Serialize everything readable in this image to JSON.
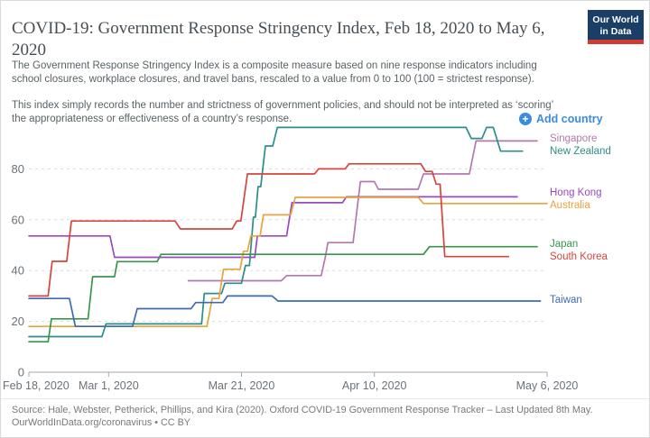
{
  "header": {
    "title": "COVID-19: Government Response Stringency Index, Feb 18, 2020 to May 6, 2020",
    "logo_line1": "Our World",
    "logo_line2": "in Data",
    "description1": "The Government Response Stringency Index is a composite measure based on nine response indicators including school closures, workplace closures, and travel bans, rescaled to a value from 0 to 100 (100 = strictest response).",
    "description2": "This index simply records the number and strictness of government policies, and should not be interpreted as ‘scoring’ the appropriateness or effectiveness of a country’s response."
  },
  "controls": {
    "add_country_label": "Add country"
  },
  "chart_data": {
    "type": "line",
    "title": "COVID-19: Government Response Stringency Index",
    "date_range": "Feb 18, 2020 to May 6, 2020",
    "xlabel": "",
    "ylabel": "",
    "ylim": [
      0,
      100
    ],
    "yticks": [
      0,
      20,
      40,
      60,
      80
    ],
    "grid": "dashed horizontal gridlines",
    "legend_position": "right of plot, colored country labels",
    "x_unit": "day offset from Feb 18, 2020",
    "xticks": [
      {
        "day": 0,
        "label": "Feb 18, 2020",
        "align": "start"
      },
      {
        "day": 12,
        "label": "Mar 1, 2020",
        "align": "middle"
      },
      {
        "day": 32,
        "label": "Mar 21, 2020",
        "align": "middle"
      },
      {
        "day": 52,
        "label": "Apr 10, 2020",
        "align": "middle"
      },
      {
        "day": 78,
        "label": "May 6, 2020",
        "align": "middle"
      }
    ],
    "series": [
      {
        "name": "Singapore",
        "color": "#b478af",
        "points": [
          [
            24,
            36
          ],
          [
            38,
            36
          ],
          [
            38.8,
            38
          ],
          [
            44,
            38
          ],
          [
            44.6,
            45
          ],
          [
            45,
            51
          ],
          [
            48.8,
            51
          ],
          [
            49.9,
            75
          ],
          [
            52,
            75
          ],
          [
            52.6,
            72
          ],
          [
            58.6,
            72
          ],
          [
            59.4,
            78
          ],
          [
            66.3,
            78
          ],
          [
            67.3,
            91
          ],
          [
            76.5,
            91
          ]
        ]
      },
      {
        "name": "New Zealand",
        "color": "#2b8e8a",
        "points": [
          [
            0,
            14
          ],
          [
            11,
            14
          ],
          [
            11.6,
            19
          ],
          [
            26,
            19
          ],
          [
            26.4,
            31
          ],
          [
            29,
            31
          ],
          [
            29.5,
            35
          ],
          [
            32,
            35
          ],
          [
            32.6,
            42
          ],
          [
            33.2,
            42
          ],
          [
            33.8,
            61
          ],
          [
            34.1,
            61
          ],
          [
            34.5,
            73
          ],
          [
            34.9,
            73
          ],
          [
            35.6,
            89
          ],
          [
            36.7,
            89
          ],
          [
            37.4,
            96.3
          ],
          [
            65.8,
            96.3
          ],
          [
            66.6,
            92
          ],
          [
            68.2,
            92
          ],
          [
            68.9,
            96.3
          ],
          [
            69.9,
            96.3
          ],
          [
            71,
            87
          ],
          [
            74.3,
            87
          ]
        ]
      },
      {
        "name": "Hong Kong",
        "color": "#9a49be",
        "points": [
          [
            0,
            53.6
          ],
          [
            12.2,
            53.6
          ],
          [
            12.9,
            45.2
          ],
          [
            34,
            45.2
          ],
          [
            34.4,
            53.6
          ],
          [
            38.8,
            53.6
          ],
          [
            39.6,
            66.7
          ],
          [
            47.2,
            66.7
          ],
          [
            47.8,
            69
          ],
          [
            73.5,
            69
          ]
        ]
      },
      {
        "name": "Australia",
        "color": "#e8a33c",
        "points": [
          [
            0,
            18
          ],
          [
            26.8,
            18
          ],
          [
            27.6,
            29
          ],
          [
            28.6,
            29
          ],
          [
            29.3,
            40.5
          ],
          [
            31.8,
            40.5
          ],
          [
            32.3,
            47.6
          ],
          [
            32.9,
            47.6
          ],
          [
            33.4,
            53.6
          ],
          [
            34.8,
            53.6
          ],
          [
            35.3,
            61.9
          ],
          [
            39.4,
            61.9
          ],
          [
            40.1,
            68.8
          ],
          [
            58.6,
            68.8
          ],
          [
            59.4,
            66.4
          ],
          [
            78,
            66.4
          ]
        ]
      },
      {
        "name": "Japan",
        "color": "#38964a",
        "points": [
          [
            0,
            12
          ],
          [
            2.9,
            12
          ],
          [
            3.4,
            21
          ],
          [
            8.9,
            21
          ],
          [
            9.6,
            37.6
          ],
          [
            12.9,
            37.6
          ],
          [
            13.3,
            43.5
          ],
          [
            19.3,
            43.5
          ],
          [
            19.9,
            46.4
          ],
          [
            59.4,
            46.4
          ],
          [
            60.3,
            49.4
          ],
          [
            76.5,
            49.4
          ]
        ]
      },
      {
        "name": "South Korea",
        "color": "#d8433d",
        "points": [
          [
            0,
            30
          ],
          [
            2.9,
            30
          ],
          [
            3.5,
            43.6
          ],
          [
            5.7,
            43.6
          ],
          [
            6.4,
            59.5
          ],
          [
            22,
            59.5
          ],
          [
            22.8,
            56.4
          ],
          [
            30.6,
            56.4
          ],
          [
            31.3,
            59.5
          ],
          [
            31.9,
            59.5
          ],
          [
            32.9,
            78
          ],
          [
            43,
            78
          ],
          [
            43.6,
            80
          ],
          [
            47.6,
            80
          ],
          [
            48.2,
            82
          ],
          [
            59,
            82
          ],
          [
            59.7,
            79
          ],
          [
            60.7,
            79
          ],
          [
            61.3,
            74
          ],
          [
            61.9,
            74
          ],
          [
            62.6,
            45.5
          ],
          [
            72.2,
            45.5
          ]
        ]
      },
      {
        "name": "Taiwan",
        "color": "#3d6bb3",
        "points": [
          [
            0,
            29
          ],
          [
            6.1,
            29
          ],
          [
            7,
            18
          ],
          [
            15.6,
            18
          ],
          [
            16.3,
            25
          ],
          [
            24.4,
            25
          ],
          [
            25.1,
            27.4
          ],
          [
            29.2,
            27.4
          ],
          [
            29.9,
            30
          ],
          [
            36.6,
            30
          ],
          [
            37.5,
            28
          ],
          [
            77,
            28
          ]
        ]
      }
    ]
  },
  "footer": {
    "line1": "Source: Hale, Webster, Petherick, Phillips, and Kira (2020). Oxford COVID-19 Government Response Tracker – Last Updated 8th May.",
    "line2": "OurWorldInData.org/coronavirus • CC BY"
  }
}
